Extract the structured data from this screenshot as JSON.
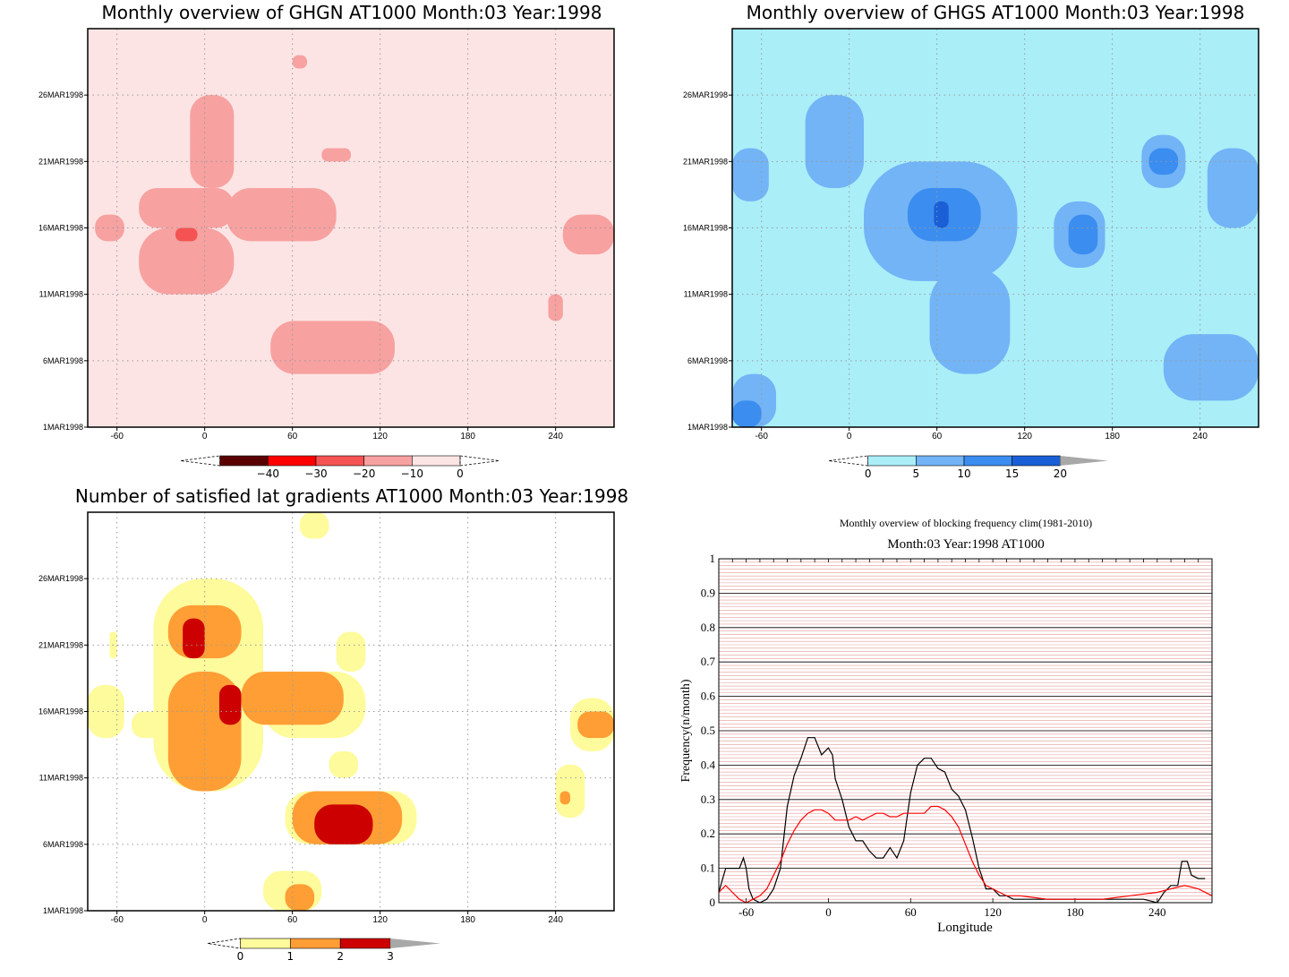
{
  "figure": {
    "time_ticks": [
      "26MAR1998",
      "21MAR1998",
      "16MAR1998",
      "11MAR1998",
      "6MAR1998",
      "1MAR1998"
    ],
    "lon_ticks": [
      "-60",
      "0",
      "60",
      "120",
      "180",
      "240"
    ]
  },
  "chart_data": [
    {
      "type": "heatmap",
      "title": "Monthly overview of GHGN AT1000 Month:03 Year:1998",
      "x_axis": "longitude",
      "xlim": [
        -80,
        280
      ],
      "y_axis": "date",
      "ylim": [
        "1MAR1998",
        "31MAR1998"
      ],
      "grid": true,
      "colorbar": {
        "ticks": [
          "-40",
          "-30",
          "-20",
          "-10",
          "0"
        ],
        "levels": [
          -40,
          -30,
          -20,
          -10,
          0
        ],
        "colors": [
          "#5a0000",
          "#ff0000",
          "#f55353",
          "#f7a1a1",
          "#fde4e4"
        ],
        "extend_low": true,
        "extend_high": true
      },
      "regions": [
        {
          "level": "0",
          "color": "#fde4e4",
          "lon": [
            -80,
            280
          ],
          "day": [
            1,
            31
          ]
        },
        {
          "level": "-10",
          "color": "#f7a1a1",
          "lon": [
            -75,
            -55
          ],
          "day": [
            15,
            17
          ]
        },
        {
          "level": "-10",
          "color": "#f7a1a1",
          "lon": [
            -45,
            20
          ],
          "day": [
            16,
            19
          ]
        },
        {
          "level": "-10",
          "color": "#f7a1a1",
          "lon": [
            -10,
            20
          ],
          "day": [
            19,
            26
          ]
        },
        {
          "level": "-10",
          "color": "#f7a1a1",
          "lon": [
            15,
            90
          ],
          "day": [
            15,
            19
          ]
        },
        {
          "level": "-10",
          "color": "#f7a1a1",
          "lon": [
            80,
            100
          ],
          "day": [
            21,
            22
          ]
        },
        {
          "level": "-10",
          "color": "#f7a1a1",
          "lon": [
            60,
            70
          ],
          "day": [
            28,
            29
          ]
        },
        {
          "level": "-10",
          "color": "#f7a1a1",
          "lon": [
            -45,
            20
          ],
          "day": [
            11,
            16
          ]
        },
        {
          "level": "-10",
          "color": "#f7a1a1",
          "lon": [
            45,
            130
          ],
          "day": [
            5,
            9
          ]
        },
        {
          "level": "-10",
          "color": "#f7a1a1",
          "lon": [
            245,
            280
          ],
          "day": [
            14,
            17
          ]
        },
        {
          "level": "-10",
          "color": "#f7a1a1",
          "lon": [
            235,
            245
          ],
          "day": [
            9,
            11
          ]
        },
        {
          "level": "-20",
          "color": "#f55353",
          "lon": [
            -20,
            -5
          ],
          "day": [
            15,
            16
          ]
        }
      ]
    },
    {
      "type": "heatmap",
      "title": "Monthly overview of GHGS AT1000 Month:03 Year:1998",
      "x_axis": "longitude",
      "xlim": [
        -80,
        280
      ],
      "y_axis": "date",
      "ylim": [
        "1MAR1998",
        "31MAR1998"
      ],
      "grid": true,
      "colorbar": {
        "ticks": [
          "0",
          "5",
          "10",
          "15",
          "20"
        ],
        "levels": [
          0,
          5,
          10,
          15,
          20
        ],
        "colors": [
          "#aaeef8",
          "#72b4f6",
          "#3b8df0",
          "#1a5fd6",
          "#a8a8a8"
        ],
        "extend_low": true,
        "extend_high": true
      },
      "regions": [
        {
          "level": "0",
          "color": "#aaeef8",
          "lon": [
            -80,
            280
          ],
          "day": [
            1,
            31
          ]
        },
        {
          "level": "5",
          "color": "#72b4f6",
          "lon": [
            -80,
            -50
          ],
          "day": [
            1,
            5
          ]
        },
        {
          "level": "5",
          "color": "#72b4f6",
          "lon": [
            -80,
            -55
          ],
          "day": [
            18,
            22
          ]
        },
        {
          "level": "5",
          "color": "#72b4f6",
          "lon": [
            -30,
            10
          ],
          "day": [
            19,
            26
          ]
        },
        {
          "level": "5",
          "color": "#72b4f6",
          "lon": [
            10,
            115
          ],
          "day": [
            12,
            21
          ]
        },
        {
          "level": "5",
          "color": "#72b4f6",
          "lon": [
            55,
            110
          ],
          "day": [
            5,
            13
          ]
        },
        {
          "level": "5",
          "color": "#72b4f6",
          "lon": [
            140,
            175
          ],
          "day": [
            13,
            18
          ]
        },
        {
          "level": "5",
          "color": "#72b4f6",
          "lon": [
            200,
            230
          ],
          "day": [
            19,
            23
          ]
        },
        {
          "level": "5",
          "color": "#72b4f6",
          "lon": [
            215,
            280
          ],
          "day": [
            3,
            8
          ]
        },
        {
          "level": "5",
          "color": "#72b4f6",
          "lon": [
            245,
            280
          ],
          "day": [
            16,
            22
          ]
        },
        {
          "level": "10",
          "color": "#3b8df0",
          "lon": [
            -80,
            -60
          ],
          "day": [
            1,
            3
          ]
        },
        {
          "level": "10",
          "color": "#3b8df0",
          "lon": [
            40,
            90
          ],
          "day": [
            15,
            19
          ]
        },
        {
          "level": "10",
          "color": "#3b8df0",
          "lon": [
            150,
            170
          ],
          "day": [
            14,
            17
          ]
        },
        {
          "level": "10",
          "color": "#3b8df0",
          "lon": [
            205,
            225
          ],
          "day": [
            20,
            22
          ]
        },
        {
          "level": "15",
          "color": "#1a5fd6",
          "lon": [
            58,
            68
          ],
          "day": [
            16,
            18
          ]
        }
      ]
    },
    {
      "type": "heatmap",
      "title": "Number of satisfied lat gradients AT1000 Month:03 Year:1998",
      "x_axis": "longitude",
      "xlim": [
        -80,
        280
      ],
      "y_axis": "date",
      "ylim": [
        "1MAR1998",
        "31MAR1998"
      ],
      "grid": true,
      "colorbar": {
        "ticks": [
          "0",
          "1",
          "2",
          "3"
        ],
        "levels": [
          0,
          1,
          2,
          3
        ],
        "colors": [
          "#fdfb9c",
          "#ff9e35",
          "#cc0000",
          "#a8a8a8"
        ],
        "extend_low": true,
        "extend_high": true
      },
      "regions": [
        {
          "level": "0",
          "color": "#fdfb9c",
          "lon": [
            -35,
            40
          ],
          "day": [
            10,
            26
          ]
        },
        {
          "level": "0",
          "color": "#fdfb9c",
          "lon": [
            -80,
            -55
          ],
          "day": [
            14,
            18
          ]
        },
        {
          "level": "0",
          "color": "#fdfb9c",
          "lon": [
            -50,
            -25
          ],
          "day": [
            14,
            16
          ]
        },
        {
          "level": "0",
          "color": "#fdfb9c",
          "lon": [
            40,
            110
          ],
          "day": [
            14,
            19
          ]
        },
        {
          "level": "0",
          "color": "#fdfb9c",
          "lon": [
            90,
            110
          ],
          "day": [
            19,
            22
          ]
        },
        {
          "level": "0",
          "color": "#fdfb9c",
          "lon": [
            85,
            105
          ],
          "day": [
            11,
            13
          ]
        },
        {
          "level": "0",
          "color": "#fdfb9c",
          "lon": [
            55,
            145
          ],
          "day": [
            6,
            10
          ]
        },
        {
          "level": "0",
          "color": "#fdfb9c",
          "lon": [
            40,
            80
          ],
          "day": [
            1,
            4
          ]
        },
        {
          "level": "0",
          "color": "#fdfb9c",
          "lon": [
            65,
            85
          ],
          "day": [
            29,
            31
          ]
        },
        {
          "level": "0",
          "color": "#fdfb9c",
          "lon": [
            -65,
            -60
          ],
          "day": [
            20,
            22
          ]
        },
        {
          "level": "0",
          "color": "#fdfb9c",
          "lon": [
            240,
            260
          ],
          "day": [
            8,
            12
          ]
        },
        {
          "level": "0",
          "color": "#fdfb9c",
          "lon": [
            250,
            280
          ],
          "day": [
            13,
            17
          ]
        },
        {
          "level": "1",
          "color": "#ff9e35",
          "lon": [
            -25,
            25
          ],
          "day": [
            10,
            19
          ]
        },
        {
          "level": "1",
          "color": "#ff9e35",
          "lon": [
            -25,
            25
          ],
          "day": [
            20,
            24
          ]
        },
        {
          "level": "1",
          "color": "#ff9e35",
          "lon": [
            25,
            95
          ],
          "day": [
            15,
            19
          ]
        },
        {
          "level": "1",
          "color": "#ff9e35",
          "lon": [
            60,
            135
          ],
          "day": [
            6,
            10
          ]
        },
        {
          "level": "1",
          "color": "#ff9e35",
          "lon": [
            55,
            75
          ],
          "day": [
            1,
            3
          ]
        },
        {
          "level": "1",
          "color": "#ff9e35",
          "lon": [
            255,
            280
          ],
          "day": [
            14,
            16
          ]
        },
        {
          "level": "1",
          "color": "#ff9e35",
          "lon": [
            243,
            250
          ],
          "day": [
            9,
            10
          ]
        },
        {
          "level": "2",
          "color": "#cc0000",
          "lon": [
            -15,
            0
          ],
          "day": [
            20,
            23
          ]
        },
        {
          "level": "2",
          "color": "#cc0000",
          "lon": [
            10,
            25
          ],
          "day": [
            15,
            18
          ]
        },
        {
          "level": "2",
          "color": "#cc0000",
          "lon": [
            75,
            115
          ],
          "day": [
            6,
            9
          ]
        }
      ]
    },
    {
      "type": "line",
      "title": "Monthly overview of blocking frequency clim(1981-2010)",
      "subtitle": "Month:03 Year:1998  AT1000",
      "xlabel": "Longitude",
      "ylabel": "Frequency(n/month)",
      "xlim": [
        -80,
        280
      ],
      "ylim": [
        0,
        1
      ],
      "x_ticks": [
        "-60",
        "0",
        "60",
        "120",
        "180",
        "240"
      ],
      "y_ticks": [
        "0",
        "0.1",
        "0.2",
        "0.3",
        "0.4",
        "0.5",
        "0.6",
        "0.7",
        "0.8",
        "0.9",
        "1"
      ],
      "grid": true,
      "series": [
        {
          "color": "#000000",
          "x": [
            -80,
            -75,
            -70,
            -65,
            -62,
            -60,
            -58,
            -55,
            -50,
            -45,
            -40,
            -35,
            -30,
            -25,
            -20,
            -15,
            -10,
            -5,
            0,
            3,
            5,
            10,
            15,
            20,
            25,
            30,
            35,
            40,
            45,
            50,
            55,
            60,
            65,
            70,
            75,
            80,
            85,
            90,
            95,
            100,
            105,
            110,
            115,
            120,
            125,
            130,
            135,
            140,
            150,
            160,
            170,
            180,
            190,
            200,
            210,
            220,
            230,
            240,
            245,
            250,
            255,
            258,
            262,
            265,
            270,
            275
          ],
          "y": [
            0.03,
            0.1,
            0.1,
            0.1,
            0.13,
            0.1,
            0.04,
            0.01,
            0.0,
            0.01,
            0.04,
            0.1,
            0.28,
            0.37,
            0.42,
            0.48,
            0.48,
            0.43,
            0.45,
            0.43,
            0.36,
            0.3,
            0.22,
            0.18,
            0.18,
            0.15,
            0.13,
            0.13,
            0.16,
            0.13,
            0.18,
            0.32,
            0.4,
            0.42,
            0.42,
            0.39,
            0.38,
            0.33,
            0.31,
            0.27,
            0.19,
            0.1,
            0.04,
            0.04,
            0.02,
            0.02,
            0.01,
            0.01,
            0.01,
            0.01,
            0.01,
            0.01,
            0.01,
            0.01,
            0.01,
            0.01,
            0.01,
            0.0,
            0.03,
            0.05,
            0.05,
            0.12,
            0.12,
            0.08,
            0.07,
            0.07
          ]
        },
        {
          "color": "#ff0000",
          "x": [
            -80,
            -75,
            -70,
            -65,
            -60,
            -55,
            -50,
            -45,
            -40,
            -35,
            -30,
            -25,
            -20,
            -15,
            -10,
            -5,
            0,
            5,
            10,
            15,
            20,
            25,
            30,
            35,
            40,
            45,
            50,
            55,
            60,
            65,
            70,
            75,
            80,
            85,
            90,
            95,
            100,
            105,
            110,
            115,
            120,
            125,
            130,
            140,
            160,
            180,
            200,
            220,
            240,
            250,
            260,
            270,
            280
          ],
          "y": [
            0.03,
            0.05,
            0.03,
            0.01,
            0.0,
            0.01,
            0.02,
            0.04,
            0.08,
            0.12,
            0.17,
            0.21,
            0.24,
            0.26,
            0.27,
            0.27,
            0.26,
            0.24,
            0.24,
            0.24,
            0.25,
            0.24,
            0.25,
            0.26,
            0.26,
            0.25,
            0.25,
            0.26,
            0.26,
            0.26,
            0.26,
            0.28,
            0.28,
            0.27,
            0.25,
            0.22,
            0.17,
            0.12,
            0.08,
            0.05,
            0.04,
            0.03,
            0.02,
            0.02,
            0.01,
            0.01,
            0.01,
            0.02,
            0.03,
            0.04,
            0.05,
            0.04,
            0.02
          ]
        }
      ]
    }
  ]
}
